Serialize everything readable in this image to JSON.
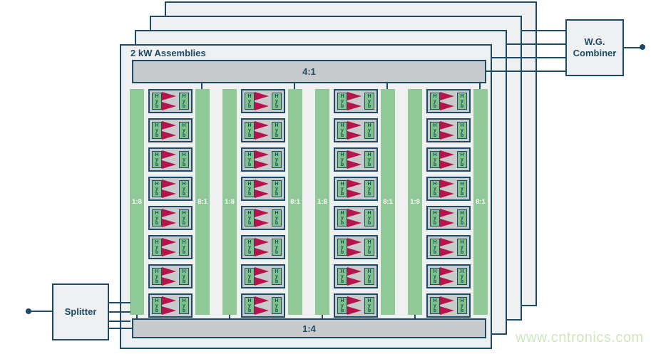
{
  "page": {
    "watermark": "www.cntronics.com"
  },
  "colors": {
    "line_navy": "#1d4a66",
    "panel_fill": "#eef0f2",
    "bar_gray": "#c9cacc",
    "splitter_combiner_green": "#90c997",
    "hybrid_green": "#7fc38b",
    "amplifier_red": "#b8134a",
    "label_white": "#ffffff",
    "watermark_green": "#cfe7bb"
  },
  "splitter": {
    "label": "Splitter"
  },
  "wg_combiner": {
    "label": "W.G. Combiner"
  },
  "assembly": {
    "title": "2 kW Assemblies",
    "stacked_panels": 4,
    "top_combiner_label": "4:1",
    "bottom_splitter_label": "1:4",
    "column_groups": [
      {
        "input_bar_label": "1:8",
        "output_bar_label": "8:1",
        "modules": 8
      },
      {
        "input_bar_label": "1:8",
        "output_bar_label": "8:1",
        "modules": 8
      },
      {
        "input_bar_label": "1:8",
        "output_bar_label": "8:1",
        "modules": 8
      },
      {
        "input_bar_label": "1:8",
        "output_bar_label": "8:1",
        "modules": 8
      }
    ],
    "module": {
      "hybrid_label": "Hyb",
      "amplifier_count": 2
    }
  }
}
